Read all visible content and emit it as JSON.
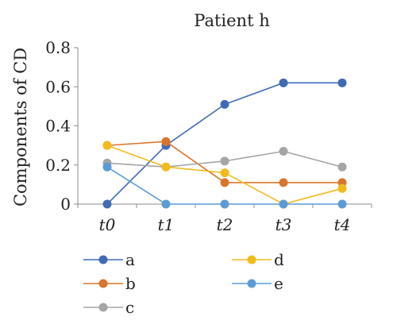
{
  "chart_data": {
    "type": "line",
    "title": "Patient h",
    "xlabel": "",
    "ylabel": "Components of CD",
    "categories": [
      "t0",
      "t1",
      "t2",
      "t3",
      "t4"
    ],
    "ylim": [
      0,
      0.8
    ],
    "yticks": [
      0,
      0.2,
      0.4,
      0.6,
      0.8
    ],
    "ytick_labels": [
      "0",
      "0.2",
      "0.4",
      "0.6",
      "0.8"
    ],
    "grid": false,
    "legend_position": "bottom",
    "series": [
      {
        "name": "a",
        "color": "#3f6bb5",
        "values": [
          0,
          0.3,
          0.51,
          0.62,
          0.62
        ]
      },
      {
        "name": "b",
        "color": "#d9752c",
        "values": [
          0.3,
          0.32,
          0.11,
          0.11,
          0.11
        ]
      },
      {
        "name": "c",
        "color": "#a5a5a5",
        "values": [
          0.21,
          0.19,
          0.22,
          0.27,
          0.19
        ]
      },
      {
        "name": "d",
        "color": "#f2bb1c",
        "values": [
          0.3,
          0.19,
          0.16,
          0,
          0.08
        ]
      },
      {
        "name": "e",
        "color": "#5b9bd5",
        "values": [
          0.19,
          0,
          0,
          0,
          0
        ]
      }
    ]
  }
}
